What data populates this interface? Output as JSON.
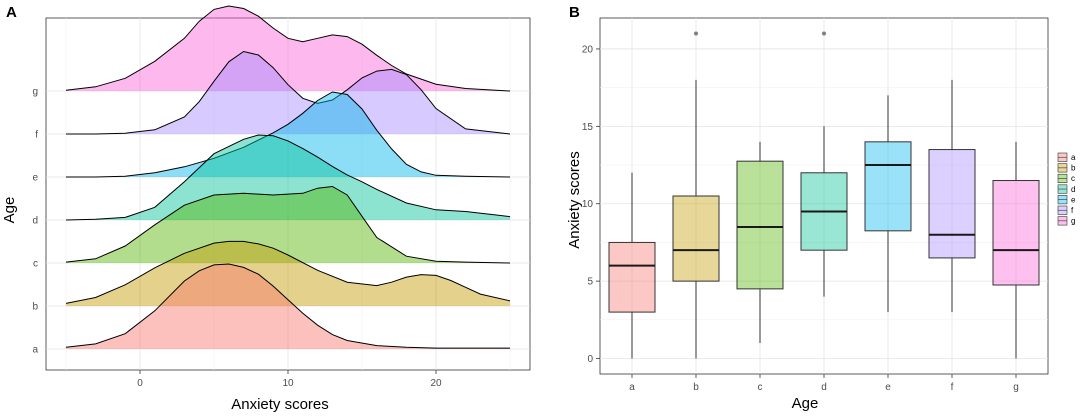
{
  "chart_data": [
    {
      "panel": "A",
      "type": "area",
      "subtype": "ridgeline-density",
      "xlabel": "Anxiety scores",
      "ylabel": "Age",
      "xlim": [
        -5,
        25
      ],
      "xticks": [
        0,
        10,
        20
      ],
      "series": [
        {
          "name": "a",
          "color": "#F8766D",
          "x": [
            -5,
            -3,
            -1,
            1,
            3,
            4,
            5,
            6,
            7,
            8,
            9,
            10,
            11,
            12,
            13,
            14,
            16,
            18,
            20,
            22,
            25
          ],
          "y": [
            0.02,
            0.06,
            0.18,
            0.45,
            0.8,
            0.92,
            0.99,
            1.0,
            0.96,
            0.88,
            0.74,
            0.58,
            0.42,
            0.28,
            0.17,
            0.1,
            0.04,
            0.02,
            0.01,
            0.01,
            0.01
          ]
        },
        {
          "name": "b",
          "color": "#C49A00",
          "x": [
            -5,
            -3,
            -1,
            1,
            3,
            5,
            6,
            7,
            8,
            9,
            10,
            12,
            14,
            16,
            17,
            18,
            19,
            20,
            21,
            22,
            23,
            25
          ],
          "y": [
            0.03,
            0.1,
            0.25,
            0.45,
            0.62,
            0.74,
            0.76,
            0.76,
            0.73,
            0.68,
            0.6,
            0.42,
            0.28,
            0.24,
            0.28,
            0.34,
            0.37,
            0.36,
            0.3,
            0.22,
            0.14,
            0.06
          ]
        },
        {
          "name": "c",
          "color": "#53B400",
          "x": [
            -5,
            -3,
            -1,
            1,
            3,
            5,
            7,
            9,
            11,
            12,
            13,
            14,
            15,
            16,
            18,
            20,
            22,
            25
          ],
          "y": [
            0.01,
            0.05,
            0.2,
            0.45,
            0.68,
            0.8,
            0.82,
            0.8,
            0.82,
            0.88,
            0.9,
            0.8,
            0.55,
            0.3,
            0.08,
            0.02,
            0.01,
            0.0
          ]
        },
        {
          "name": "d",
          "color": "#00C094",
          "x": [
            -5,
            -3,
            -1,
            1,
            3,
            5,
            7,
            8,
            9,
            10,
            11,
            12,
            13,
            14,
            15,
            16,
            18,
            20,
            22,
            24,
            25
          ],
          "y": [
            0.0,
            0.01,
            0.03,
            0.15,
            0.45,
            0.78,
            0.95,
            1.0,
            0.99,
            0.93,
            0.84,
            0.74,
            0.63,
            0.53,
            0.45,
            0.36,
            0.2,
            0.12,
            0.1,
            0.06,
            0.04
          ]
        },
        {
          "name": "e",
          "color": "#00B6EB",
          "x": [
            -5,
            -3,
            -1,
            1,
            3,
            5,
            7,
            9,
            10,
            11,
            12,
            13,
            14,
            15,
            16,
            17,
            18,
            19,
            20,
            22,
            25
          ],
          "y": [
            0.0,
            0.0,
            0.01,
            0.05,
            0.12,
            0.22,
            0.35,
            0.52,
            0.62,
            0.75,
            0.9,
            1.0,
            0.97,
            0.8,
            0.55,
            0.33,
            0.15,
            0.06,
            0.02,
            0.01,
            0.0
          ]
        },
        {
          "name": "f",
          "color": "#A58AFF",
          "x": [
            -5,
            -3,
            -1,
            1,
            3,
            4,
            5,
            6,
            7,
            8,
            9,
            10,
            11,
            12,
            13,
            14,
            15,
            16,
            17,
            18,
            19,
            20,
            22,
            25
          ],
          "y": [
            0.0,
            0.0,
            0.01,
            0.05,
            0.2,
            0.38,
            0.62,
            0.85,
            0.97,
            0.93,
            0.78,
            0.58,
            0.42,
            0.36,
            0.4,
            0.52,
            0.66,
            0.74,
            0.76,
            0.7,
            0.52,
            0.3,
            0.06,
            0.0
          ]
        },
        {
          "name": "g",
          "color": "#FB61D7",
          "x": [
            -5,
            -3,
            -1,
            1,
            3,
            4,
            5,
            6,
            7,
            8,
            9,
            10,
            11,
            12,
            13,
            14,
            15,
            16,
            17,
            18,
            20,
            22,
            25
          ],
          "y": [
            0.01,
            0.05,
            0.15,
            0.35,
            0.62,
            0.82,
            0.96,
            1.0,
            0.97,
            0.88,
            0.74,
            0.62,
            0.58,
            0.62,
            0.66,
            0.64,
            0.55,
            0.42,
            0.3,
            0.2,
            0.08,
            0.03,
            0.0
          ]
        }
      ]
    },
    {
      "panel": "B",
      "type": "box",
      "xlabel": "Age",
      "ylabel": "Anxiety scores",
      "ylim": [
        -1,
        22
      ],
      "yticks": [
        0,
        5,
        10,
        15,
        20
      ],
      "legend_position": "right",
      "categories": [
        "a",
        "b",
        "c",
        "d",
        "e",
        "f",
        "g"
      ],
      "boxes": [
        {
          "name": "a",
          "color": "#F8766D",
          "min": 0,
          "q1": 3,
          "median": 6,
          "q3": 7.5,
          "max": 12,
          "outliers": []
        },
        {
          "name": "b",
          "color": "#C49A00",
          "min": 0,
          "q1": 5,
          "median": 7,
          "q3": 10.5,
          "max": 18,
          "outliers": [
            21
          ]
        },
        {
          "name": "c",
          "color": "#53B400",
          "min": 1,
          "q1": 4.5,
          "median": 8.5,
          "q3": 12.75,
          "max": 14,
          "outliers": []
        },
        {
          "name": "d",
          "color": "#00C094",
          "min": 4,
          "q1": 7,
          "median": 9.5,
          "q3": 12,
          "max": 15,
          "outliers": [
            21
          ]
        },
        {
          "name": "e",
          "color": "#00B6EB",
          "min": 3,
          "q1": 8.25,
          "median": 12.5,
          "q3": 14,
          "max": 17,
          "outliers": []
        },
        {
          "name": "f",
          "color": "#A58AFF",
          "min": 3,
          "q1": 6.5,
          "median": 8,
          "q3": 13.5,
          "max": 18,
          "outliers": []
        },
        {
          "name": "g",
          "color": "#FB61D7",
          "min": 0,
          "q1": 4.75,
          "median": 7,
          "q3": 11.5,
          "max": 14,
          "outliers": []
        }
      ]
    }
  ]
}
